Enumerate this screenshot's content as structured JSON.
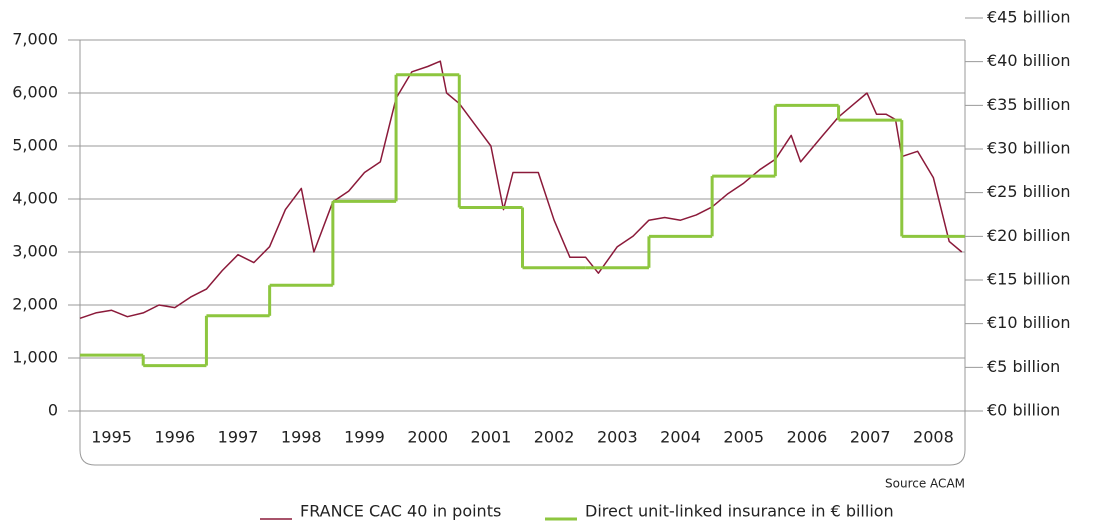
{
  "chart_data": {
    "type": "line",
    "source": "Source ACAM",
    "xlim": [
      1995,
      2009
    ],
    "xticks": [
      {
        "value": 1995.5,
        "label": "1995"
      },
      {
        "value": 1996.5,
        "label": "1996"
      },
      {
        "value": 1997.5,
        "label": "1997"
      },
      {
        "value": 1998.5,
        "label": "1998"
      },
      {
        "value": 1999.5,
        "label": "1999"
      },
      {
        "value": 2000.5,
        "label": "2000"
      },
      {
        "value": 2001.5,
        "label": "2001"
      },
      {
        "value": 2002.5,
        "label": "2002"
      },
      {
        "value": 2003.5,
        "label": "2003"
      },
      {
        "value": 2004.5,
        "label": "2004"
      },
      {
        "value": 2005.5,
        "label": "2005"
      },
      {
        "value": 2006.5,
        "label": "2006"
      },
      {
        "value": 2007.5,
        "label": "2007"
      },
      {
        "value": 2008.5,
        "label": "2008"
      }
    ],
    "ylim": [
      0,
      7000
    ],
    "yticks": [
      0,
      {
        "value": 1000,
        "label": "1,000"
      },
      {
        "value": 2000,
        "label": "2,000"
      },
      {
        "value": 3000,
        "label": "3,000"
      },
      {
        "value": 4000,
        "label": "4,000"
      },
      {
        "value": 5000,
        "label": "5,000"
      },
      {
        "value": 6000,
        "label": "6,000"
      },
      {
        "value": 7000,
        "label": "7,000"
      }
    ],
    "y2lim": [
      0,
      45
    ],
    "y2ticks": [
      {
        "value": 0,
        "label": "€0 billion"
      },
      {
        "value": 5,
        "label": "€5 billion"
      },
      {
        "value": 10,
        "label": "€10 billion"
      },
      {
        "value": 15,
        "label": "€15 billion"
      },
      {
        "value": 20,
        "label": "€20 billion"
      },
      {
        "value": 25,
        "label": "€25 billion"
      },
      {
        "value": 30,
        "label": "€30 billion"
      },
      {
        "value": 35,
        "label": "€35 billion"
      },
      {
        "value": 40,
        "label": "€40 billion"
      },
      {
        "value": 45,
        "label": "€45 billion"
      }
    ],
    "grid": true,
    "series": [
      {
        "name": "FRANCE CAC 40 in points",
        "color": "#8b1a3a",
        "x": [
          1995.0,
          1995.25,
          1995.5,
          1995.75,
          1996.0,
          1996.25,
          1996.5,
          1996.75,
          1997.0,
          1997.25,
          1997.5,
          1997.75,
          1998.0,
          1998.25,
          1998.5,
          1998.7,
          1999.0,
          1999.25,
          1999.5,
          1999.75,
          2000.0,
          2000.25,
          2000.5,
          2000.7,
          2000.8,
          2001.0,
          2001.25,
          2001.5,
          2001.7,
          2001.85,
          2002.0,
          2002.25,
          2002.5,
          2002.75,
          2003.0,
          2003.2,
          2003.5,
          2003.75,
          2004.0,
          2004.25,
          2004.5,
          2004.75,
          2005.0,
          2005.25,
          2005.5,
          2005.75,
          2006.0,
          2006.25,
          2006.4,
          2006.75,
          2007.0,
          2007.25,
          2007.45,
          2007.6,
          2007.75,
          2007.9,
          2008.0,
          2008.25,
          2008.5,
          2008.75,
          2008.95
        ],
        "values": [
          1750,
          1850,
          1900,
          1780,
          1850,
          2000,
          1950,
          2150,
          2300,
          2650,
          2950,
          2800,
          3100,
          3800,
          4200,
          3000,
          3950,
          4150,
          4500,
          4700,
          5900,
          6400,
          6500,
          6600,
          6000,
          5800,
          5400,
          5000,
          3800,
          4500,
          4500,
          4500,
          3600,
          2900,
          2900,
          2600,
          3100,
          3300,
          3600,
          3650,
          3600,
          3700,
          3850,
          4100,
          4300,
          4550,
          4750,
          5200,
          4700,
          5200,
          5550,
          5800,
          6000,
          5600,
          5600,
          5500,
          4800,
          4900,
          4400,
          3200,
          3000
        ]
      },
      {
        "name": "Direct unit-linked insurance in € billion",
        "color": "#8dc63f",
        "axis": "y2",
        "x": [
          1995,
          1996,
          1997,
          1998,
          1999,
          2000,
          2001,
          2002,
          2003,
          2004,
          2005,
          2006,
          2007,
          2008
        ],
        "values": [
          6.4,
          5.2,
          10.9,
          14.4,
          24,
          38.5,
          23.3,
          16.4,
          16.4,
          20,
          26.9,
          35,
          33.3,
          20
        ]
      }
    ]
  }
}
